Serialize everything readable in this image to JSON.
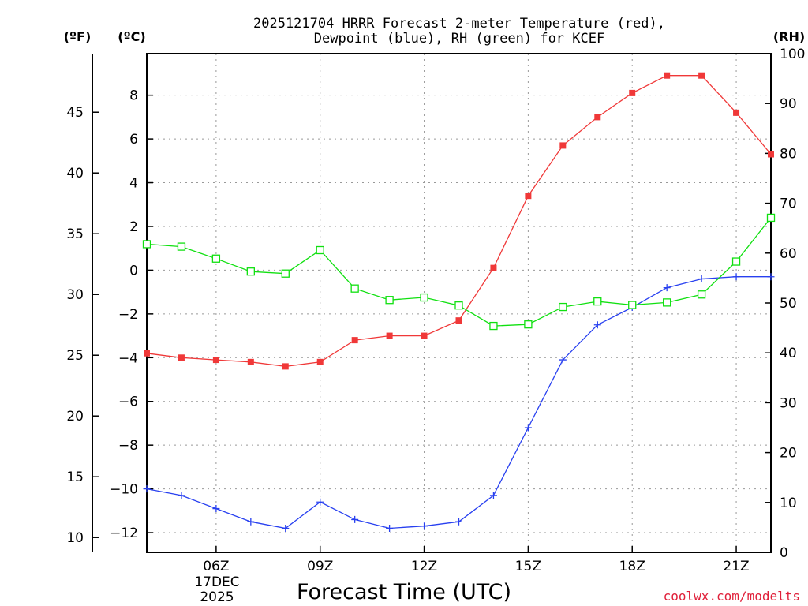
{
  "chart_data": {
    "type": "line",
    "title_line1": "2025121704 HRRR Forecast 2-meter Temperature (red),",
    "title_line2": "Dewpoint (blue), RH (green) for KCEF",
    "xlabel": "Forecast Time (UTC)",
    "date_label_day": "17DEC",
    "date_label_year": "2025",
    "units": {
      "fahrenheit": "(ºF)",
      "celsius": "(ºC)",
      "rh": "(RH)"
    },
    "credit": "coolwx.com/modelts",
    "x_hours": [
      4,
      5,
      6,
      7,
      8,
      9,
      10,
      11,
      12,
      13,
      14,
      15,
      16,
      17,
      18,
      19,
      20,
      21,
      22
    ],
    "x_range": [
      4,
      22
    ],
    "x_ticks": [
      {
        "hour": 6,
        "label": "06Z"
      },
      {
        "hour": 9,
        "label": "09Z"
      },
      {
        "hour": 12,
        "label": "12Z"
      },
      {
        "hour": 15,
        "label": "15Z"
      },
      {
        "hour": 18,
        "label": "18Z"
      },
      {
        "hour": 21,
        "label": "21Z"
      }
    ],
    "celsius_axis": {
      "range": [
        -12.9,
        9.9
      ],
      "ticks": [
        -12,
        -10,
        -8,
        -6,
        -4,
        -2,
        0,
        2,
        4,
        6,
        8
      ],
      "labels": [
        "−12",
        "−10",
        "−8",
        "−6",
        "−4",
        "−2",
        "0",
        "2",
        "4",
        "6",
        "8"
      ]
    },
    "fahrenheit_axis": {
      "ticks": [
        10,
        15,
        20,
        25,
        30,
        35,
        40,
        45
      ],
      "labels": [
        "10",
        "15",
        "20",
        "25",
        "30",
        "35",
        "40",
        "45"
      ]
    },
    "rh_axis": {
      "range": [
        0,
        100
      ],
      "ticks": [
        0,
        10,
        20,
        30,
        40,
        50,
        60,
        70,
        80,
        90,
        100
      ],
      "labels": [
        "0",
        "10",
        "20",
        "30",
        "40",
        "50",
        "60",
        "70",
        "80",
        "90",
        "100"
      ]
    },
    "series": [
      {
        "name": "2-meter Temperature",
        "units": "C",
        "color": "#f03838",
        "marker": "filled-square",
        "values": [
          -3.8,
          -4.0,
          -4.1,
          -4.2,
          -4.4,
          -4.2,
          -3.2,
          -3.0,
          -3.0,
          -2.3,
          0.1,
          3.4,
          5.7,
          7.0,
          8.1,
          8.9,
          8.9,
          7.2,
          5.3
        ]
      },
      {
        "name": "Dewpoint",
        "units": "C",
        "color": "#2840f0",
        "marker": "plus",
        "values": [
          -10.0,
          -10.3,
          -10.9,
          -11.5,
          -11.8,
          -10.6,
          -11.4,
          -11.8,
          -11.7,
          -11.5,
          -10.3,
          -7.2,
          -4.1,
          -2.5,
          -1.7,
          -0.8,
          -0.4,
          -0.3,
          -0.3
        ]
      },
      {
        "name": "RH",
        "units": "%",
        "color": "#10e010",
        "marker": "open-square",
        "values": [
          61.8,
          61.3,
          58.9,
          56.3,
          55.9,
          60.6,
          52.9,
          50.6,
          51.1,
          49.5,
          45.4,
          45.7,
          49.2,
          50.3,
          49.6,
          50.1,
          51.7,
          58.3,
          67.1
        ]
      }
    ]
  }
}
